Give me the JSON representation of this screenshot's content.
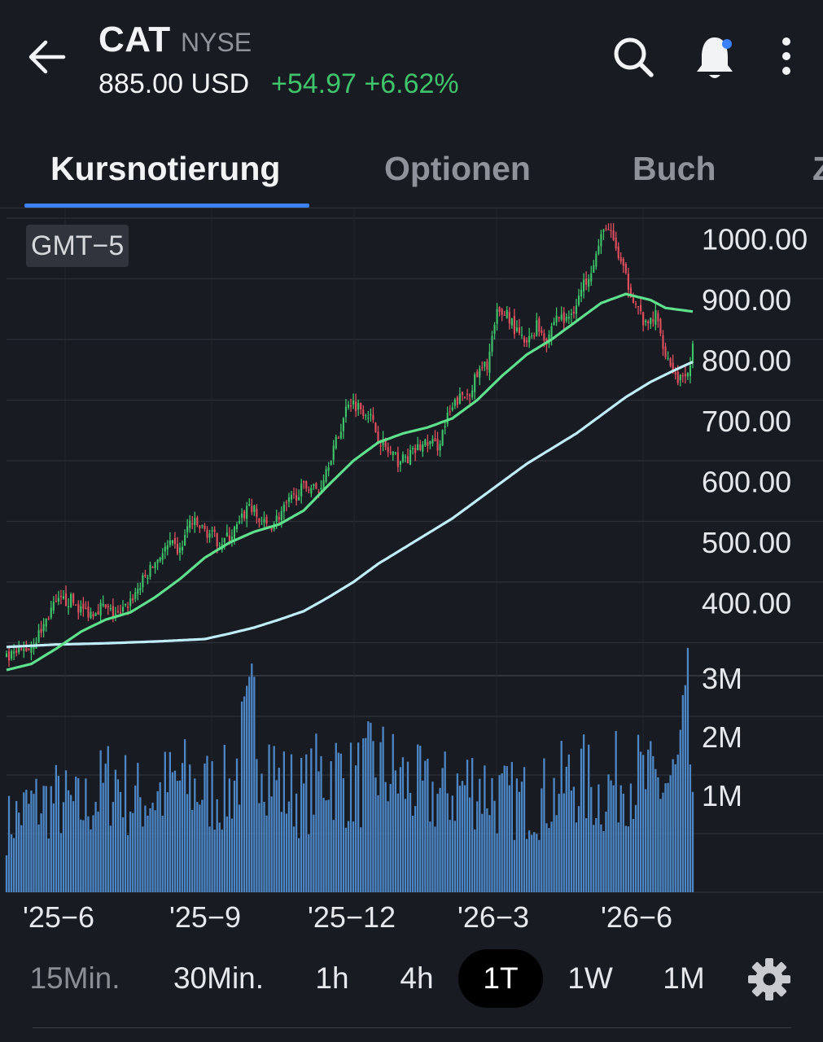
{
  "header": {
    "ticker": "CAT",
    "exchange": "NYSE",
    "price": "885.00 USD",
    "change": "+54.97 +6.62%"
  },
  "icons": {
    "back": "arrow-left-icon",
    "search": "search-icon",
    "bell": "bell-icon",
    "more": "more-vert-icon"
  },
  "tabs": [
    {
      "label": "Kursnotierung",
      "active": true
    },
    {
      "label": "Optionen",
      "active": false
    },
    {
      "label": "Buch",
      "active": false
    },
    {
      "label": "Z",
      "active": false
    }
  ],
  "chart": {
    "timezone": "GMT−5",
    "price_axis": [
      "1000.00",
      "900.00",
      "800.00",
      "700.00",
      "600.00",
      "500.00",
      "400.00"
    ],
    "volume_axis": [
      "3M",
      "2M",
      "1M"
    ],
    "x_axis": [
      "'25−6",
      "'25−9",
      "'25−12",
      "'26−3",
      "'26−6"
    ]
  },
  "chart_data": {
    "type": "candlestick",
    "y_range": [
      340,
      1100
    ],
    "volume_range": [
      0,
      3600000
    ],
    "series": [
      {
        "name": "",
        "kind": "close",
        "x": [
          "'25−6",
          "'25−9",
          "'25−12",
          "'26−3",
          "'26−6"
        ],
        "values": [
          370,
          480,
          600,
          790,
          885
        ]
      }
    ],
    "close_path": [
      [
        0,
        372
      ],
      [
        6,
        385
      ],
      [
        10,
        395
      ],
      [
        14,
        420
      ],
      [
        18,
        455
      ],
      [
        22,
        468
      ],
      [
        26,
        470
      ],
      [
        30,
        455
      ],
      [
        34,
        450
      ],
      [
        38,
        460
      ],
      [
        42,
        450
      ],
      [
        46,
        445
      ],
      [
        50,
        470
      ],
      [
        54,
        495
      ],
      [
        58,
        520
      ],
      [
        62,
        545
      ],
      [
        66,
        560
      ],
      [
        70,
        550
      ],
      [
        74,
        600
      ],
      [
        78,
        590
      ],
      [
        82,
        580
      ],
      [
        86,
        565
      ],
      [
        90,
        575
      ],
      [
        94,
        595
      ],
      [
        98,
        630
      ],
      [
        102,
        600
      ],
      [
        106,
        590
      ],
      [
        110,
        610
      ],
      [
        114,
        630
      ],
      [
        118,
        650
      ],
      [
        122,
        660
      ],
      [
        126,
        650
      ],
      [
        130,
        700
      ],
      [
        134,
        740
      ],
      [
        138,
        800
      ],
      [
        142,
        790
      ],
      [
        146,
        780
      ],
      [
        150,
        740
      ],
      [
        154,
        715
      ],
      [
        158,
        700
      ],
      [
        162,
        705
      ],
      [
        166,
        720
      ],
      [
        170,
        730
      ],
      [
        174,
        725
      ],
      [
        178,
        770
      ],
      [
        182,
        800
      ],
      [
        186,
        810
      ],
      [
        190,
        840
      ],
      [
        194,
        860
      ],
      [
        198,
        940
      ],
      [
        202,
        945
      ],
      [
        206,
        910
      ],
      [
        210,
        890
      ],
      [
        214,
        925
      ],
      [
        218,
        900
      ],
      [
        222,
        940
      ],
      [
        226,
        930
      ],
      [
        230,
        960
      ],
      [
        234,
        1000
      ],
      [
        238,
        1040
      ],
      [
        242,
        1090
      ],
      [
        246,
        1050
      ],
      [
        250,
        1000
      ],
      [
        254,
        960
      ],
      [
        258,
        920
      ],
      [
        262,
        940
      ],
      [
        266,
        880
      ],
      [
        270,
        840
      ],
      [
        274,
        830
      ],
      [
        277,
        885
      ]
    ],
    "ma_short": [
      [
        0,
        355
      ],
      [
        10,
        365
      ],
      [
        20,
        390
      ],
      [
        30,
        418
      ],
      [
        40,
        438
      ],
      [
        50,
        450
      ],
      [
        60,
        475
      ],
      [
        70,
        505
      ],
      [
        80,
        540
      ],
      [
        90,
        565
      ],
      [
        100,
        583
      ],
      [
        110,
        595
      ],
      [
        120,
        618
      ],
      [
        130,
        660
      ],
      [
        140,
        700
      ],
      [
        150,
        730
      ],
      [
        160,
        745
      ],
      [
        170,
        755
      ],
      [
        180,
        770
      ],
      [
        190,
        800
      ],
      [
        200,
        840
      ],
      [
        210,
        875
      ],
      [
        220,
        900
      ],
      [
        230,
        930
      ],
      [
        240,
        960
      ],
      [
        250,
        975
      ],
      [
        260,
        965
      ],
      [
        266,
        952
      ],
      [
        277,
        946
      ]
    ],
    "ma_long": [
      [
        0,
        393
      ],
      [
        20,
        397
      ],
      [
        40,
        399
      ],
      [
        60,
        402
      ],
      [
        80,
        406
      ],
      [
        90,
        415
      ],
      [
        100,
        425
      ],
      [
        110,
        438
      ],
      [
        120,
        452
      ],
      [
        130,
        475
      ],
      [
        140,
        500
      ],
      [
        150,
        530
      ],
      [
        160,
        555
      ],
      [
        170,
        580
      ],
      [
        180,
        605
      ],
      [
        190,
        635
      ],
      [
        200,
        665
      ],
      [
        210,
        695
      ],
      [
        220,
        720
      ],
      [
        230,
        745
      ],
      [
        240,
        775
      ],
      [
        250,
        805
      ],
      [
        260,
        830
      ],
      [
        270,
        850
      ],
      [
        277,
        863
      ]
    ],
    "volume_samples": [
      [
        0,
        1400000
      ],
      [
        10,
        1800000
      ],
      [
        20,
        1900000
      ],
      [
        30,
        1700000
      ],
      [
        38,
        2100000
      ],
      [
        44,
        2400000
      ],
      [
        50,
        1900000
      ],
      [
        60,
        2000000
      ],
      [
        70,
        2300000
      ],
      [
        80,
        2100000
      ],
      [
        90,
        2100000
      ],
      [
        100,
        3600000
      ],
      [
        110,
        2200000
      ],
      [
        120,
        2000000
      ],
      [
        130,
        2600000
      ],
      [
        140,
        2200000
      ],
      [
        150,
        2600000
      ],
      [
        160,
        2300000
      ],
      [
        170,
        2000000
      ],
      [
        180,
        2100000
      ],
      [
        190,
        2300000
      ],
      [
        200,
        1900000
      ],
      [
        210,
        1900000
      ],
      [
        220,
        2000000
      ],
      [
        230,
        2400000
      ],
      [
        240,
        2000000
      ],
      [
        250,
        2500000
      ],
      [
        260,
        2200000
      ],
      [
        270,
        2300000
      ],
      [
        275,
        3500000
      ],
      [
        277,
        2100000
      ]
    ]
  },
  "timeframes": [
    "15Min.",
    "30Min.",
    "1h",
    "4h",
    "1T",
    "1W",
    "1M"
  ],
  "active_timeframe": "1T",
  "colors": {
    "background": "#181b22",
    "up": "#3fc46b",
    "down": "#e0505f",
    "ma_short": "#5fe08c",
    "ma_long": "#bfeefa",
    "volume": "#4d86c4",
    "accent": "#3b82f6"
  }
}
